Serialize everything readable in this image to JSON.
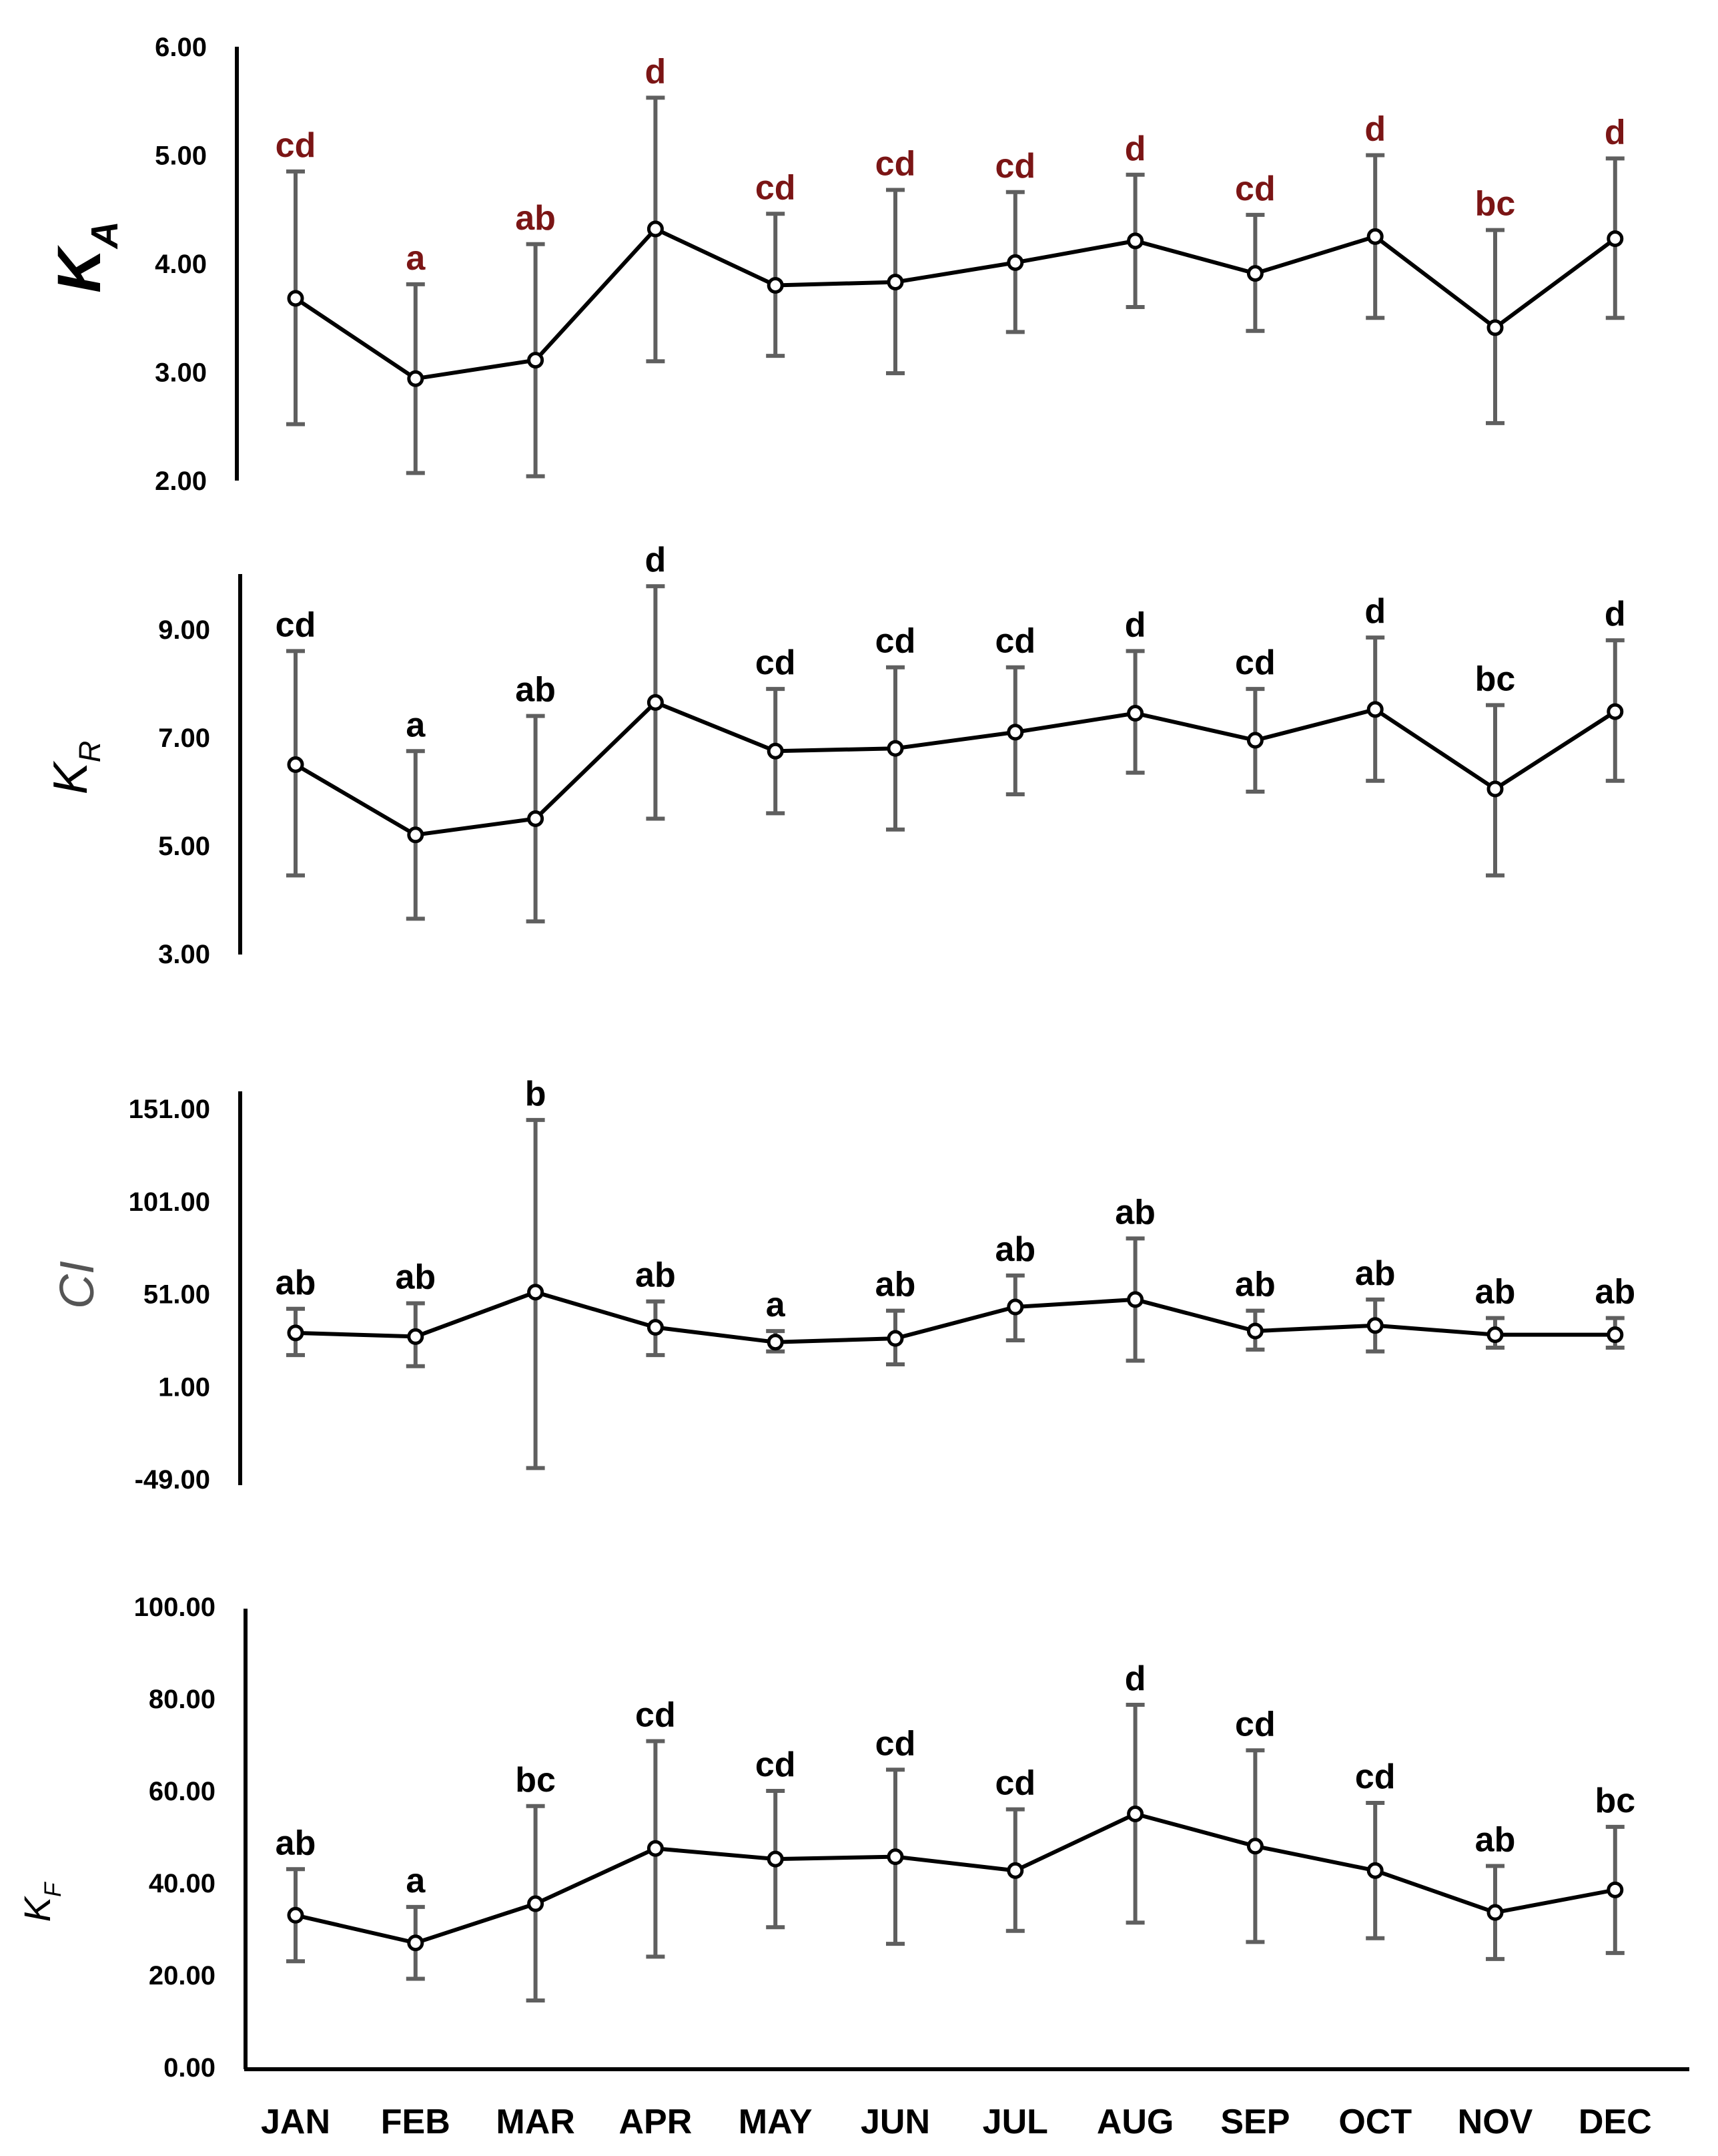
{
  "chart_data": [
    {
      "type": "line",
      "title": "",
      "ylabel": "K",
      "ylabel_sub": "A",
      "ylabel_style": "bold-italic",
      "ylim": [
        2.0,
        6.0
      ],
      "ytick_values": [
        2.0,
        3.0,
        4.0,
        5.0,
        6.0
      ],
      "ytick_labels": [
        "2.00",
        "3.00",
        "4.00",
        "5.00",
        "6.00"
      ],
      "letter_color": "#7b1515",
      "categories": [
        "JAN",
        "FEB",
        "MAR",
        "APR",
        "MAY",
        "JUN",
        "JUL",
        "AUG",
        "SEP",
        "OCT",
        "NOV",
        "DEC"
      ],
      "values": [
        3.68,
        2.94,
        3.11,
        4.32,
        3.8,
        3.83,
        4.01,
        4.21,
        3.91,
        4.25,
        3.41,
        4.23
      ],
      "err_low": [
        2.52,
        2.07,
        2.04,
        3.1,
        3.15,
        2.99,
        3.37,
        3.6,
        3.38,
        3.5,
        2.53,
        3.5
      ],
      "err_high": [
        4.85,
        3.81,
        4.18,
        5.53,
        4.46,
        4.68,
        4.66,
        4.82,
        4.45,
        5.0,
        4.31,
        4.97
      ],
      "letters": [
        "cd",
        "a",
        "ab",
        "d",
        "cd",
        "cd",
        "cd",
        "d",
        "cd",
        "d",
        "bc",
        "d"
      ]
    },
    {
      "type": "line",
      "title": "",
      "ylabel": "K",
      "ylabel_sub": "R",
      "ylabel_style": "italic",
      "ylim": [
        3.0,
        10.0
      ],
      "ytick_values": [
        3.0,
        5.0,
        7.0,
        9.0
      ],
      "ytick_labels": [
        "3.00",
        "5.00",
        "7.00",
        "9.00"
      ],
      "letter_color": "#000000",
      "categories": [
        "JAN",
        "FEB",
        "MAR",
        "APR",
        "MAY",
        "JUN",
        "JUL",
        "AUG",
        "SEP",
        "OCT",
        "NOV",
        "DEC"
      ],
      "values": [
        6.5,
        5.2,
        5.5,
        7.65,
        6.75,
        6.8,
        7.1,
        7.45,
        6.95,
        7.52,
        6.05,
        7.48
      ],
      "err_low": [
        4.45,
        3.65,
        3.6,
        5.5,
        5.6,
        5.3,
        5.95,
        6.35,
        6.0,
        6.2,
        4.45,
        6.2
      ],
      "err_high": [
        8.6,
        6.75,
        7.4,
        9.8,
        7.9,
        8.3,
        8.3,
        8.6,
        7.9,
        8.85,
        7.6,
        8.8
      ],
      "letters": [
        "cd",
        "a",
        "ab",
        "d",
        "cd",
        "cd",
        "cd",
        "d",
        "cd",
        "d",
        "bc",
        "d"
      ]
    },
    {
      "type": "line",
      "title": "",
      "ylabel": "CI",
      "ylabel_sub": "",
      "ylabel_style": "italic",
      "ylim": [
        -49.0,
        161.0
      ],
      "ytick_values": [
        -49.0,
        1.0,
        51.0,
        101.0,
        151.0
      ],
      "ytick_labels": [
        "-49.00",
        "1.00",
        "51.00",
        "101.00",
        "151.00"
      ],
      "letter_color": "#000000",
      "categories": [
        "JAN",
        "FEB",
        "MAR",
        "APR",
        "MAY",
        "JUN",
        "JUL",
        "AUG",
        "SEP",
        "OCT",
        "NOV",
        "DEC"
      ],
      "values": [
        30,
        28,
        52,
        33,
        25,
        27,
        44,
        48,
        31,
        34,
        29,
        29
      ],
      "err_low": [
        18,
        12,
        -43,
        18,
        20,
        13,
        26,
        15,
        21,
        20,
        22,
        22
      ],
      "err_high": [
        43,
        46,
        145,
        47,
        31,
        42,
        61,
        81,
        42,
        48,
        38,
        38
      ],
      "letters": [
        "ab",
        "ab",
        "b",
        "ab",
        "a",
        "ab",
        "ab",
        "ab",
        "ab",
        "ab",
        "ab",
        "ab"
      ]
    },
    {
      "type": "line",
      "title": "",
      "ylabel": "K",
      "ylabel_sub": "F",
      "ylabel_style": "italic",
      "ylim": [
        0.0,
        100.0
      ],
      "ytick_values": [
        0.0,
        20.0,
        40.0,
        60.0,
        80.0,
        100.0
      ],
      "ytick_labels": [
        "0.00",
        "20.00",
        "40.00",
        "60.00",
        "80.00",
        "100.00"
      ],
      "letter_color": "#000000",
      "categories": [
        "JAN",
        "FEB",
        "MAR",
        "APR",
        "MAY",
        "JUN",
        "JUL",
        "AUG",
        "SEP",
        "OCT",
        "NOV",
        "DEC"
      ],
      "values": [
        33.0,
        27.0,
        35.5,
        47.5,
        45.2,
        45.7,
        42.7,
        55.0,
        48.0,
        42.7,
        33.6,
        38.5
      ],
      "err_low": [
        23.0,
        19.2,
        14.5,
        24.0,
        30.4,
        26.8,
        29.6,
        31.4,
        27.2,
        28.0,
        23.5,
        24.8
      ],
      "err_high": [
        43.0,
        34.8,
        56.7,
        70.8,
        60.0,
        64.6,
        56.0,
        78.7,
        68.8,
        57.4,
        43.7,
        52.2
      ],
      "letters": [
        "ab",
        "a",
        "bc",
        "cd",
        "cd",
        "cd",
        "cd",
        "d",
        "cd",
        "cd",
        "ab",
        "bc"
      ]
    }
  ],
  "x_axis": {
    "labels": [
      "JAN",
      "FEB",
      "MAR",
      "APR",
      "MAY",
      "JUN",
      "JUL",
      "AUG",
      "SEP",
      "OCT",
      "NOV",
      "DEC"
    ]
  }
}
